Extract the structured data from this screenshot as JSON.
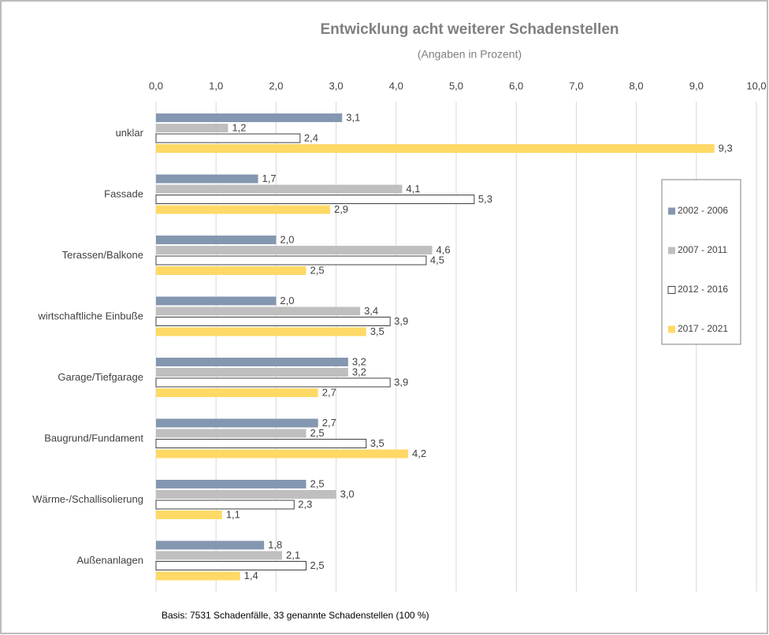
{
  "chart_data": {
    "type": "hbar",
    "title": "Entwicklung acht weiterer Schadenstellen",
    "subtitle": "(Angaben in Prozent)",
    "footnote": "Basis: 7531 Schadenfälle, 33 genannte Schadenstellen (100 %)",
    "categories": [
      "unklar",
      "Fassade",
      "Terassen/Balkone",
      "wirtschaftliche Einbuße",
      "Garage/Tiefgarage",
      "Baugrund/Fundament",
      "Wärme-/Schallisolierung",
      "Außenanlagen"
    ],
    "series": [
      {
        "name": "2002 - 2006",
        "color": "#8497b0",
        "values": [
          3.1,
          1.7,
          2.0,
          2.0,
          3.2,
          2.7,
          2.5,
          1.8
        ],
        "value_labels": [
          "3,1",
          "1,7",
          "2,0",
          "2,0",
          "3,2",
          "2,7",
          "2,5",
          "1,8"
        ]
      },
      {
        "name": "2007 - 2011",
        "color": "#bfbfbf",
        "values": [
          1.2,
          4.1,
          4.6,
          3.4,
          3.2,
          2.5,
          3.0,
          2.1
        ],
        "value_labels": [
          "1,2",
          "4,1",
          "4,6",
          "3,4",
          "3,2",
          "2,5",
          "3,0",
          "2,1"
        ]
      },
      {
        "name": "2012 - 2016",
        "color": "#ffffff",
        "values": [
          2.4,
          5.3,
          4.5,
          3.9,
          3.9,
          3.5,
          2.3,
          2.5
        ],
        "value_labels": [
          "2,4",
          "5,3",
          "4,5",
          "3,9",
          "3,9",
          "3,5",
          "2,3",
          "2,5"
        ]
      },
      {
        "name": "2017 - 2021",
        "color": "#ffd966",
        "values": [
          9.3,
          2.9,
          2.5,
          3.5,
          2.7,
          4.2,
          1.1,
          1.4
        ],
        "value_labels": [
          "9,3",
          "2,9",
          "2,5",
          "3,5",
          "2,7",
          "4,2",
          "1,1",
          "1,4"
        ]
      }
    ],
    "xlim": [
      0,
      10
    ],
    "xticks": [
      {
        "value": 0,
        "label": "0,0"
      },
      {
        "value": 1,
        "label": "1,0"
      },
      {
        "value": 2,
        "label": "2,0"
      },
      {
        "value": 3,
        "label": "3,0"
      },
      {
        "value": 4,
        "label": "4,0"
      },
      {
        "value": 5,
        "label": "5,0"
      },
      {
        "value": 6,
        "label": "6,0"
      },
      {
        "value": 7,
        "label": "7,0"
      },
      {
        "value": 8,
        "label": "8,0"
      },
      {
        "value": 9,
        "label": "9,0"
      },
      {
        "value": 10,
        "label": "10,0"
      }
    ],
    "grid": true,
    "legend": "right"
  }
}
